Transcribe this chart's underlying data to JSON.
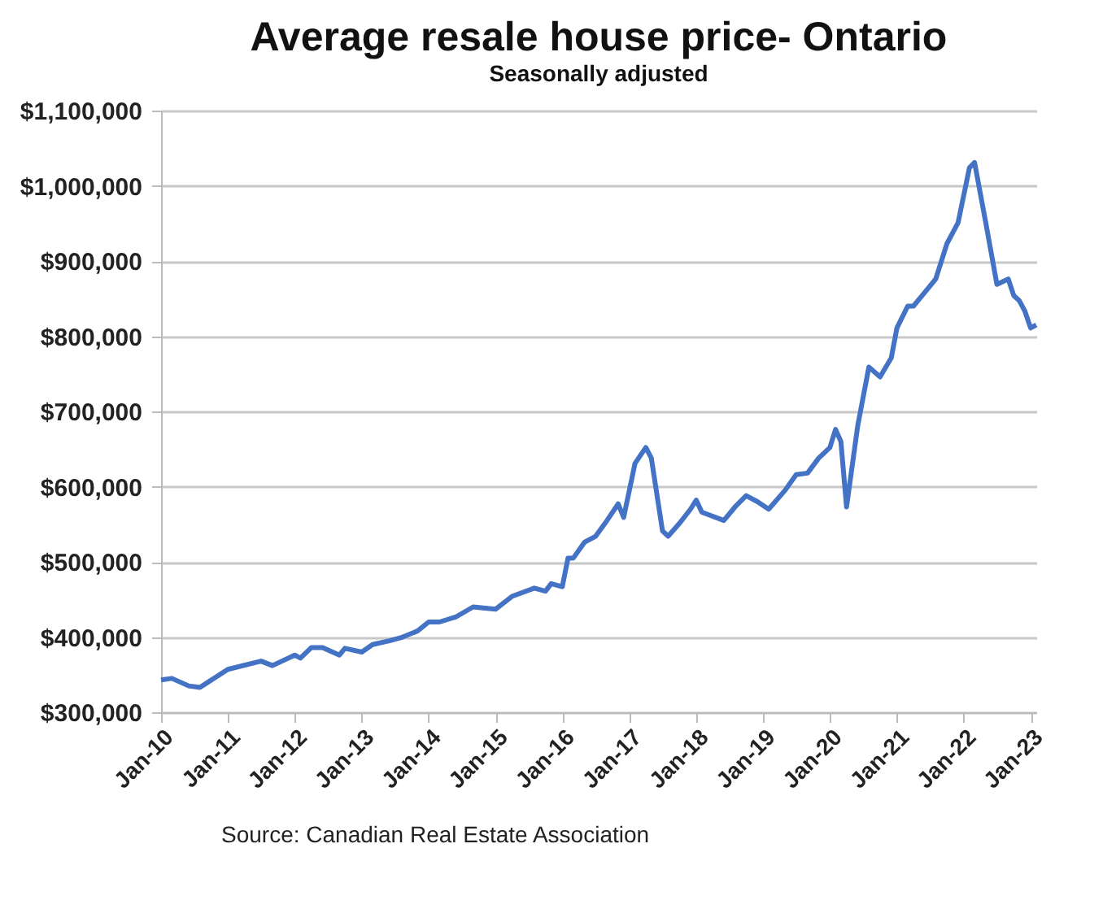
{
  "chart_data": {
    "type": "line",
    "title": "Average resale house price- Ontario",
    "subtitle": "Seasonally adjusted",
    "annotations": [
      "Source: Canadian Real Estate Association"
    ],
    "x": [
      "2010-01",
      "2010-03",
      "2010-06",
      "2010-08",
      "2011-01",
      "2011-07",
      "2011-09",
      "2012-01",
      "2012-02",
      "2012-04",
      "2012-06",
      "2012-09",
      "2012-10",
      "2013-01",
      "2013-03",
      "2013-06",
      "2013-08",
      "2013-11",
      "2014-01",
      "2014-03",
      "2014-06",
      "2014-09",
      "2015-01",
      "2015-04",
      "2015-08",
      "2015-10",
      "2015-11",
      "2016-01",
      "2016-02",
      "2016-03",
      "2016-05",
      "2016-07",
      "2016-09",
      "2016-11",
      "2016-12",
      "2017-02",
      "2017-04",
      "2017-05",
      "2017-07",
      "2017-08",
      "2017-10",
      "2017-12",
      "2018-01",
      "2018-02",
      "2018-06",
      "2018-08",
      "2018-10",
      "2018-12",
      "2019-02",
      "2019-05",
      "2019-07",
      "2019-09",
      "2019-11",
      "2020-01",
      "2020-02",
      "2020-03",
      "2020-04",
      "2020-06",
      "2020-08",
      "2020-10",
      "2020-12",
      "2021-01",
      "2021-03",
      "2021-04",
      "2021-06",
      "2021-08",
      "2021-10",
      "2021-12",
      "2022-02",
      "2022-03",
      "2022-05",
      "2022-07",
      "2022-09",
      "2022-10",
      "2022-11",
      "2022-12",
      "2023-01",
      "2023-02"
    ],
    "series": [
      {
        "color": "#4472c4",
        "values": [
          343000,
          345000,
          335000,
          333000,
          357000,
          368000,
          362000,
          376000,
          372000,
          386000,
          386000,
          376000,
          385000,
          380000,
          390000,
          395000,
          399000,
          408000,
          420000,
          420000,
          427000,
          440000,
          437000,
          454000,
          465000,
          461000,
          471000,
          467000,
          505000,
          505000,
          526000,
          534000,
          555000,
          577000,
          559000,
          631000,
          652000,
          638000,
          541000,
          534000,
          551000,
          570000,
          582000,
          566000,
          555000,
          573000,
          588000,
          580000,
          570000,
          595000,
          616000,
          618000,
          638000,
          652000,
          676000,
          660000,
          573000,
          681000,
          759000,
          746000,
          771000,
          811000,
          840000,
          840000,
          858000,
          876000,
          923000,
          951000,
          1024000,
          1031000,
          951000,
          869000,
          876000,
          854000,
          847000,
          833000,
          811000,
          815000
        ]
      }
    ],
    "xlim": [
      "2010-01",
      "2023-02"
    ],
    "xticks": [
      {
        "value": "2010-01",
        "label": "Jan-10"
      },
      {
        "value": "2011-01",
        "label": "Jan-11"
      },
      {
        "value": "2012-01",
        "label": "Jan-12"
      },
      {
        "value": "2013-01",
        "label": "Jan-13"
      },
      {
        "value": "2014-01",
        "label": "Jan-14"
      },
      {
        "value": "2015-01",
        "label": "Jan-15"
      },
      {
        "value": "2016-01",
        "label": "Jan-16"
      },
      {
        "value": "2017-01",
        "label": "Jan-17"
      },
      {
        "value": "2018-01",
        "label": "Jan-18"
      },
      {
        "value": "2019-01",
        "label": "Jan-19"
      },
      {
        "value": "2020-01",
        "label": "Jan-20"
      },
      {
        "value": "2021-01",
        "label": "Jan-21"
      },
      {
        "value": "2022-01",
        "label": "Jan-22"
      },
      {
        "value": "2023-01",
        "label": "Jan-23"
      }
    ],
    "ylim": [
      300000,
      1100000
    ],
    "yticks": [
      {
        "value": 300000,
        "label": "$300,000"
      },
      {
        "value": 400000,
        "label": "$400,000"
      },
      {
        "value": 500000,
        "label": "$500,000"
      },
      {
        "value": 600000,
        "label": "$600,000"
      },
      {
        "value": 700000,
        "label": "$700,000"
      },
      {
        "value": 800000,
        "label": "$800,000"
      },
      {
        "value": 900000,
        "label": "$900,000"
      },
      {
        "value": 1000000,
        "label": "$1,000,000"
      },
      {
        "value": 1100000,
        "label": "$1,100,000"
      }
    ],
    "grid": "y",
    "marker": "none",
    "line_style": "solid"
  }
}
